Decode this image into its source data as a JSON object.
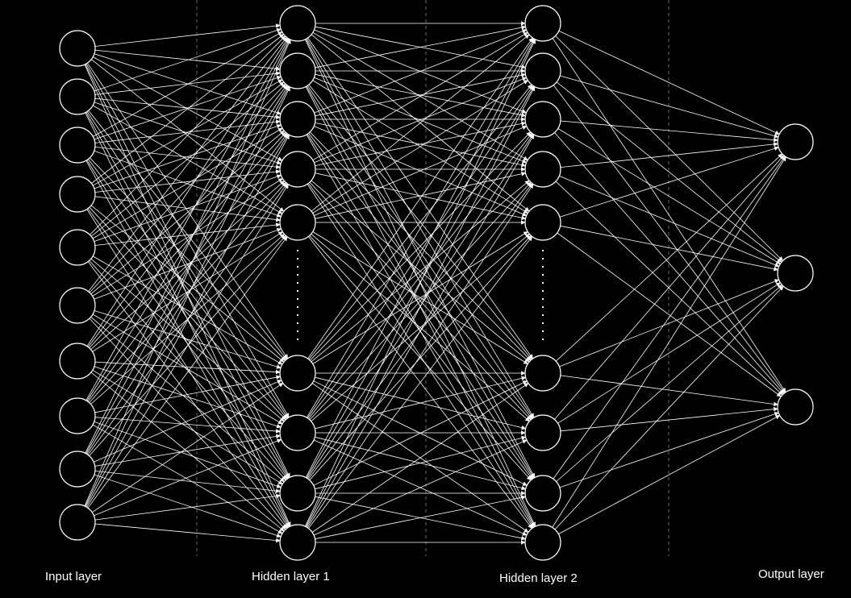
{
  "colors": {
    "background": "#000000",
    "foreground": "#ffffff",
    "separator": "#666666"
  },
  "layers": [
    {
      "id": "input",
      "label": "Input layer",
      "node_count": 10,
      "ellipsis": false
    },
    {
      "id": "hidden1",
      "label": "Hidden layer 1",
      "node_count": 9,
      "ellipsis": true
    },
    {
      "id": "hidden2",
      "label": "Hidden layer 2",
      "node_count": 9,
      "ellipsis": true
    },
    {
      "id": "output",
      "label": "Output layer",
      "node_count": 3,
      "ellipsis": false
    }
  ],
  "connections": "fully-connected between adjacent layers, directed with arrowheads"
}
